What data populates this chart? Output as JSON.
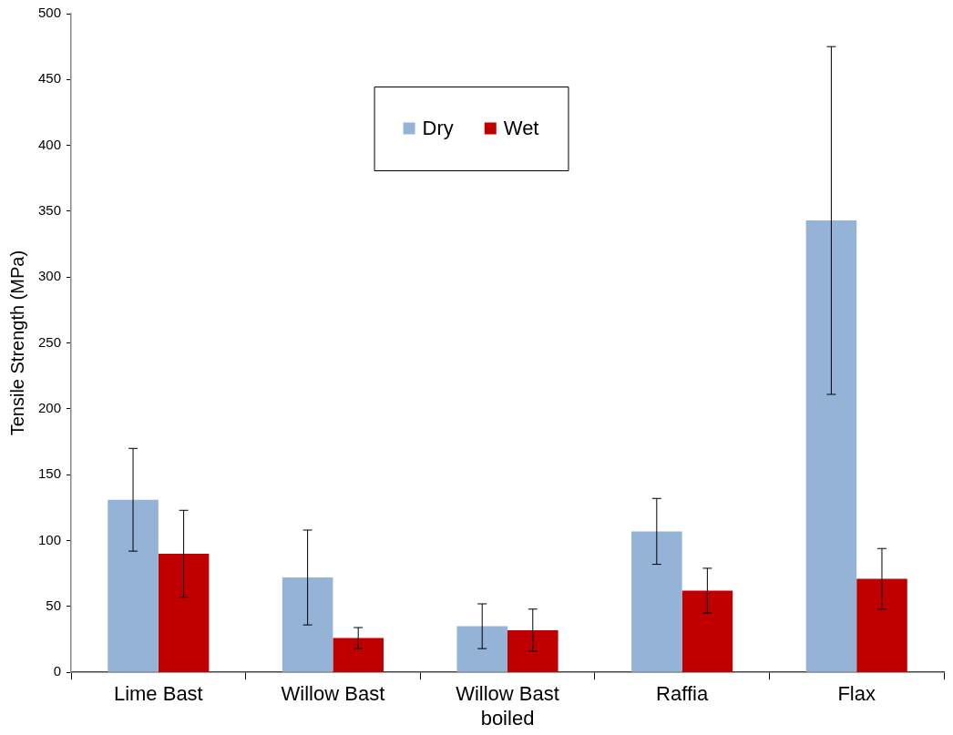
{
  "chart_data": {
    "type": "bar",
    "ylabel": "Tensile Strength (MPa)",
    "categories": [
      "Lime Bast",
      "Willow Bast",
      "Willow Bast boiled",
      "Raffia",
      "Flax"
    ],
    "series": [
      {
        "name": "Dry",
        "color": "#95b3d7",
        "values": [
          131,
          72,
          35,
          107,
          343
        ],
        "errors": [
          39,
          36,
          17,
          25,
          132
        ]
      },
      {
        "name": "Wet",
        "color": "#c00000",
        "values": [
          90,
          26,
          32,
          62,
          71
        ],
        "errors": [
          33,
          8,
          16,
          17,
          23
        ]
      }
    ],
    "ylim": [
      0,
      500
    ],
    "yticks": [
      0,
      50,
      100,
      150,
      200,
      250,
      300,
      350,
      400,
      450,
      500
    ],
    "grid": false,
    "legend": "top"
  }
}
